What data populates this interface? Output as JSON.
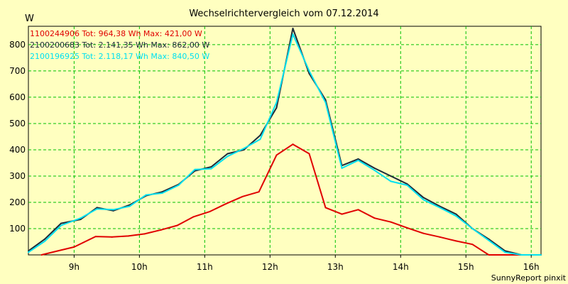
{
  "chart_data": {
    "type": "line",
    "title": "Wechselrichtervergleich vom 07.12.2014",
    "ylabel": "W",
    "xlabel": "",
    "footer": "SunnyReport pinxit",
    "x_unit": "hours",
    "xlim": [
      8.3,
      16.15
    ],
    "ylim": [
      0,
      870
    ],
    "x_ticks": [
      9,
      10,
      11,
      12,
      13,
      14,
      15,
      16
    ],
    "x_tick_labels": [
      "9h",
      "10h",
      "11h",
      "12h",
      "13h",
      "14h",
      "15h",
      "16h"
    ],
    "y_ticks": [
      100,
      200,
      300,
      400,
      500,
      600,
      700,
      800
    ],
    "y_tick_labels": [
      "100",
      "200",
      "300",
      "400",
      "500",
      "600",
      "700",
      "800"
    ],
    "grid": true,
    "legend_position": "top-left",
    "series": [
      {
        "name": "1100244906 Tot: 964,38 Wh Max: 421,00 W",
        "color": "#e00000",
        "x": [
          8.5,
          8.75,
          9.0,
          9.33,
          9.58,
          9.83,
          10.08,
          10.33,
          10.58,
          10.83,
          11.08,
          11.33,
          11.58,
          11.83,
          12.1,
          12.35,
          12.6,
          12.85,
          13.1,
          13.35,
          13.6,
          13.85,
          14.1,
          14.35,
          14.6,
          14.85,
          15.1,
          15.35,
          15.6,
          15.85,
          16.15
        ],
        "y": [
          0,
          15,
          30,
          70,
          68,
          72,
          80,
          95,
          112,
          145,
          165,
          195,
          222,
          240,
          380,
          421,
          385,
          180,
          155,
          172,
          140,
          125,
          103,
          82,
          68,
          53,
          40,
          0,
          0,
          0,
          0
        ]
      },
      {
        "name": "2100200683 Tot: 2.141,35 Wh Max: 862,00 W",
        "color": "#1c2a3a",
        "x": [
          8.3,
          8.55,
          8.8,
          9.1,
          9.35,
          9.6,
          9.85,
          10.1,
          10.35,
          10.6,
          10.85,
          11.1,
          11.35,
          11.6,
          11.85,
          12.1,
          12.35,
          12.6,
          12.85,
          13.1,
          13.35,
          13.6,
          13.85,
          14.1,
          14.35,
          14.6,
          14.85,
          15.1,
          15.35,
          15.6,
          15.85,
          16.15
        ],
        "y": [
          15,
          60,
          120,
          135,
          180,
          168,
          190,
          225,
          240,
          268,
          320,
          335,
          385,
          400,
          455,
          560,
          862,
          690,
          590,
          340,
          365,
          330,
          300,
          270,
          218,
          185,
          155,
          100,
          60,
          15,
          0,
          0
        ]
      },
      {
        "name": "2100196925 Tot: 2.118,17 Wh Max: 840,50 W",
        "color": "#00e0f0",
        "x": [
          8.3,
          8.55,
          8.8,
          9.1,
          9.35,
          9.6,
          9.85,
          10.1,
          10.35,
          10.6,
          10.85,
          11.1,
          11.35,
          11.6,
          11.85,
          12.1,
          12.35,
          12.6,
          12.85,
          13.1,
          13.35,
          13.6,
          13.85,
          14.1,
          14.35,
          14.6,
          14.85,
          15.1,
          15.35,
          15.6,
          15.85,
          16.15
        ],
        "y": [
          10,
          52,
          112,
          140,
          175,
          172,
          185,
          228,
          235,
          265,
          325,
          328,
          375,
          405,
          440,
          580,
          840,
          700,
          580,
          330,
          360,
          322,
          280,
          265,
          210,
          180,
          148,
          100,
          55,
          10,
          0,
          0
        ]
      }
    ]
  }
}
